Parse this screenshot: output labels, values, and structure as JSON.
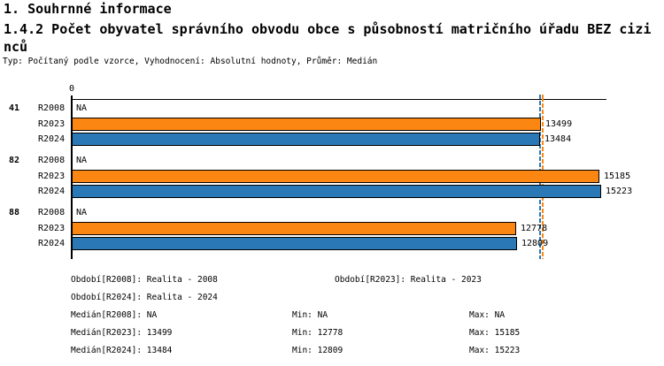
{
  "header": {
    "title": "1. Souhrnné informace",
    "subtitle": "1.4.2 Počet obyvatel správního obvodu obce s působností matričního úřadu BEZ cizinců",
    "meta": "Typ: Počítaný podle vzorce, Vyhodnocení: Absolutní hodnoty, Průměr: Medián"
  },
  "chart_data": {
    "type": "bar",
    "orientation": "horizontal",
    "title": "1.4.2 Počet obyvatel správního obvodu obce s působností matričního úřadu BEZ cizinců",
    "axis_origin_label": "0",
    "na_label": "NA",
    "xlim": [
      0,
      15400
    ],
    "grid": false,
    "categories": [
      "41",
      "82",
      "88"
    ],
    "series": [
      {
        "name": "R2008",
        "color": null,
        "values": [
          null,
          null,
          null
        ]
      },
      {
        "name": "R2023",
        "color": "#fb8712",
        "values": [
          13499,
          15185,
          12778
        ]
      },
      {
        "name": "R2024",
        "color": "#2b78b7",
        "values": [
          13484,
          15223,
          12809
        ]
      }
    ],
    "median_lines": [
      {
        "series": "R2023",
        "value": 13499,
        "color": "#fb8712"
      },
      {
        "series": "R2024",
        "value": 13484,
        "color": "#2b78b7"
      }
    ],
    "stats": {
      "median": {
        "R2008": "NA",
        "R2023": 13499,
        "R2024": 13484
      },
      "min": {
        "R2008": "NA",
        "R2023": 12778,
        "R2024": 12809
      },
      "max": {
        "R2008": "NA",
        "R2023": 15185,
        "R2024": 15223
      }
    }
  },
  "legend": {
    "rows": [
      {
        "col1": "Období[R2008]: Realita - 2008",
        "col2": "Období[R2023]: Realita - 2023"
      },
      {
        "col1": "Období[R2024]: Realita - 2024"
      },
      {
        "col1": "Medián[R2008]: NA",
        "min": "Min: NA",
        "max": "Max: NA"
      },
      {
        "col1": "Medián[R2023]: 13499",
        "min": "Min: 12778",
        "max": "Max: 15185"
      },
      {
        "col1": "Medián[R2024]: 13484",
        "min": "Min: 12809",
        "max": "Max: 15223"
      }
    ]
  }
}
